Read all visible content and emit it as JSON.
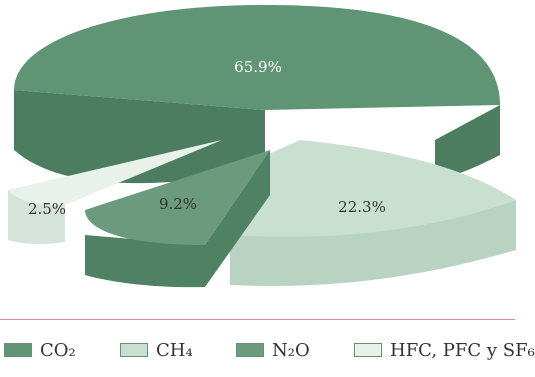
{
  "chart_data": {
    "type": "pie",
    "title": "",
    "categories": [
      "CO₂",
      "CH₄",
      "N₂O",
      "HFC, PFC y SF₆"
    ],
    "values": [
      65.9,
      22.3,
      9.2,
      2.5
    ],
    "data_labels": [
      "65.9%",
      "22.3%",
      "9.2%",
      "2.5%"
    ],
    "unit": "%",
    "style": "3d-exploded",
    "legend_position": "bottom"
  },
  "colors": {
    "CO2": "#5f9474",
    "CH4": "#c9dfd0",
    "N2O": "#6b9a7c",
    "HFC": "#e8f1ea",
    "label_light": "#ffffff",
    "label_dark": "#333333"
  },
  "legend": {
    "items": [
      {
        "label": "CO₂",
        "color": "#5f9474"
      },
      {
        "label": "CH₄",
        "color": "#c9dfd0"
      },
      {
        "label": "N₂O",
        "color": "#6b9a7c"
      },
      {
        "label": "HFC, PFC y SF₆",
        "color": "#e8f1ea"
      }
    ]
  }
}
